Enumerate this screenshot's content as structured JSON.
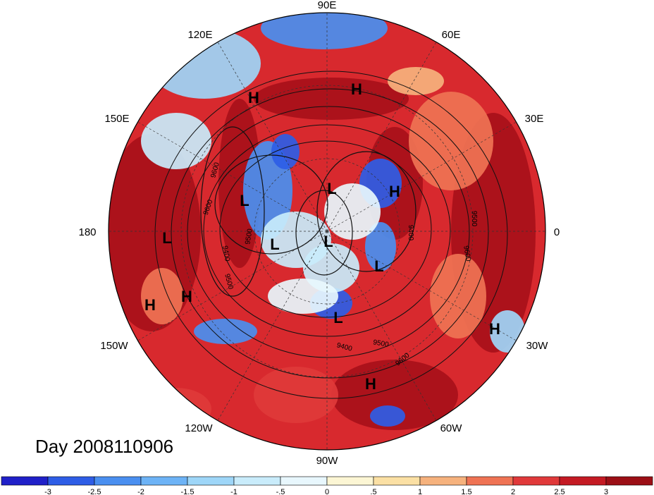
{
  "title": "Day 2008110906",
  "longitude_labels": [
    "90E",
    "60E",
    "30E",
    "0",
    "30W",
    "60W",
    "90W",
    "120W",
    "150W",
    "180",
    "150E",
    "120E"
  ],
  "pressure_systems": [
    "H",
    "H",
    "L",
    "L",
    "H",
    "L",
    "L",
    "L",
    "L",
    "L",
    "H",
    "H",
    "H",
    "H"
  ],
  "contour_labels": [
    "9600",
    "9500",
    "9400",
    "9500",
    "9600",
    "9400",
    "9500",
    "9600",
    "9400",
    "9500",
    "9600"
  ],
  "colorbar": {
    "ticks": [
      "-3",
      "-2.5",
      "-2",
      "-1.5",
      "-1",
      "-.5",
      "0",
      ".5",
      "1",
      "1.5",
      "2",
      "2.5",
      "3"
    ],
    "colors": [
      "#2020c8",
      "#2e5de6",
      "#4a8ff0",
      "#6db3f6",
      "#9ed6f8",
      "#c9ecfb",
      "#e8f7fd",
      "#fcf6d4",
      "#fbe0a4",
      "#f6b27d",
      "#ef7354",
      "#e0393a",
      "#c41a23",
      "#9c0f16"
    ]
  },
  "map_colors": {
    "ocean_red": "#a8101a",
    "warm": "#d8292e",
    "cool": "#4a8ff0",
    "pale": "#f2ecd6"
  }
}
